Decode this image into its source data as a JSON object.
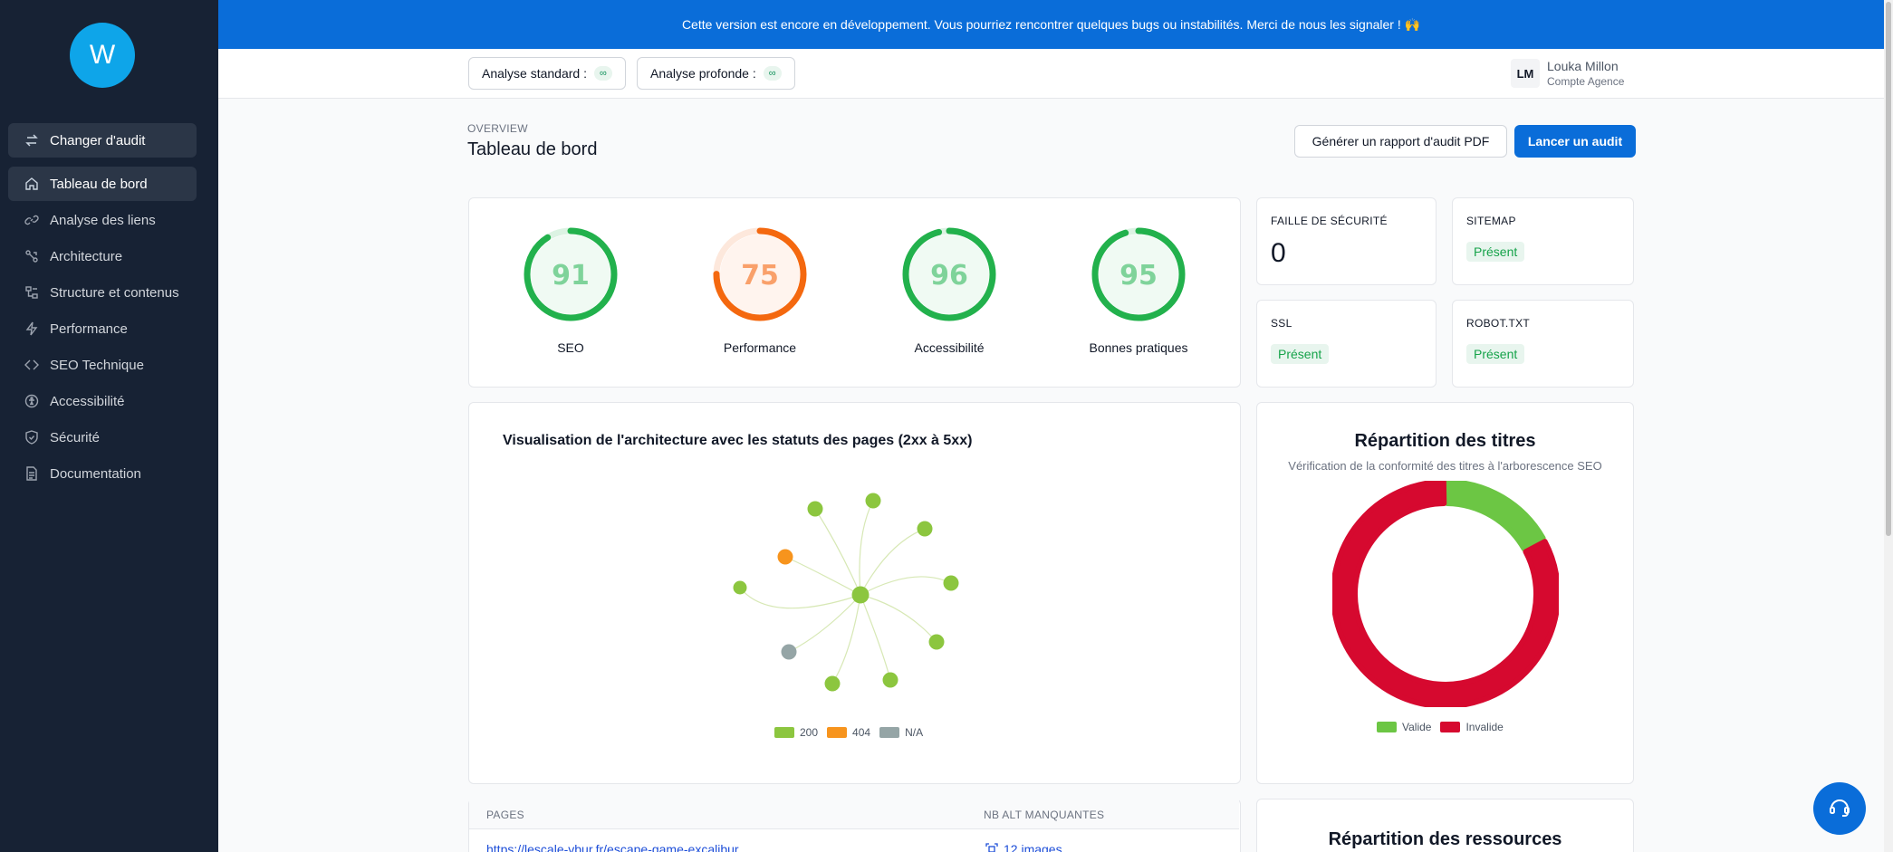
{
  "sidebar": {
    "logo_letter": "W",
    "switch_label": "Changer d'audit",
    "items": [
      {
        "label": "Tableau de bord",
        "icon": "home-icon"
      },
      {
        "label": "Analyse des liens",
        "icon": "link-icon"
      },
      {
        "label": "Architecture",
        "icon": "architecture-icon"
      },
      {
        "label": "Structure et contenus",
        "icon": "structure-icon"
      },
      {
        "label": "Performance",
        "icon": "bolt-icon"
      },
      {
        "label": "SEO Technique",
        "icon": "code-icon"
      },
      {
        "label": "Accessibilité",
        "icon": "accessibility-icon"
      },
      {
        "label": "Sécurité",
        "icon": "shield-icon"
      },
      {
        "label": "Documentation",
        "icon": "document-icon"
      }
    ]
  },
  "banner": {
    "text": "Cette version est encore en développement. Vous pourriez rencontrer quelques bugs ou instabilités. Merci de nous les signaler ! 🙌"
  },
  "topbar": {
    "standard_label": "Analyse standard :",
    "standard_value": "∞",
    "deep_label": "Analyse profonde :",
    "deep_value": "∞",
    "user_initials": "LM",
    "user_name": "Louka Millon",
    "user_role": "Compte Agence"
  },
  "header": {
    "overline": "OVERVIEW",
    "title": "Tableau de bord",
    "pdf_button": "Générer un rapport d'audit PDF",
    "run_button": "Lancer un audit"
  },
  "scores": [
    {
      "label": "SEO",
      "value": 91,
      "color": "#22b14c"
    },
    {
      "label": "Performance",
      "value": 75,
      "color": "#f4680f"
    },
    {
      "label": "Accessibilité",
      "value": 96,
      "color": "#22b14c"
    },
    {
      "label": "Bonnes pratiques",
      "value": 95,
      "color": "#22b14c"
    }
  ],
  "checks": {
    "security_title": "FAILLE DE SÉCURITÉ",
    "security_value": "0",
    "sitemap_title": "SITEMAP",
    "sitemap_value": "Présent",
    "ssl_title": "SSL",
    "ssl_value": "Présent",
    "robot_title": "ROBOT.TXT",
    "robot_value": "Présent"
  },
  "architecture": {
    "title": "Visualisation de l'architecture avec les statuts des pages (2xx à 5xx)",
    "legend": [
      {
        "label": "200",
        "color": "#8cc63f"
      },
      {
        "label": "404",
        "color": "#f7941d"
      },
      {
        "label": "N/A",
        "color": "#95a5a6"
      }
    ]
  },
  "titles_chart": {
    "title": "Répartition des titres",
    "subtitle": "Vérification de la conformité des titres à l'arborescence SEO",
    "legend_valid": "Valide",
    "legend_invalid": "Invalide",
    "color_valid": "#6cc644",
    "color_invalid": "#d6092f"
  },
  "table": {
    "col_pages": "PAGES",
    "col_alt": "NB ALT MANQUANTES",
    "row_url": "https://lescale-vbur.fr/escape-game-excalibur",
    "row_alt": "12 images"
  },
  "resources": {
    "title": "Répartition des ressources"
  },
  "chart_data": [
    {
      "type": "pie",
      "title": "Répartition des titres",
      "subtitle": "Vérification de la conformité des titres à l'arborescence SEO",
      "categories": [
        "Valide",
        "Invalide"
      ],
      "values": [
        17,
        83
      ],
      "legend": "bottom"
    }
  ]
}
